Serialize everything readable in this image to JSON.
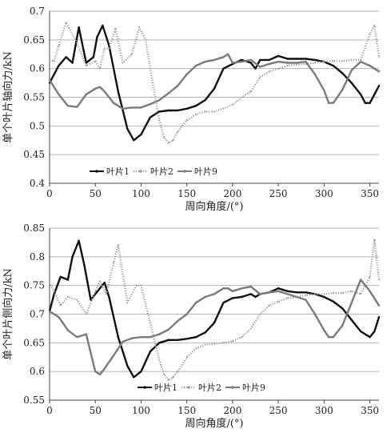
{
  "chart_data": [
    {
      "type": "line",
      "xlabel": "周向角度/(°)",
      "ylabel": "单个叶片轴向力/kN",
      "xlim": [
        0,
        360
      ],
      "ylim": [
        0.4,
        0.7
      ],
      "xticks": [
        0,
        50,
        100,
        150,
        200,
        250,
        300,
        350
      ],
      "yticks": [
        0.4,
        0.45,
        0.5,
        0.55,
        0.6,
        0.65,
        0.7
      ],
      "grid": "horizontal",
      "legend_position": "bottom-left",
      "series": [
        {
          "name": "叶片1",
          "color": "#111111",
          "style": "solid-thick",
          "x": [
            0,
            10,
            18,
            25,
            32,
            40,
            48,
            52,
            58,
            65,
            75,
            85,
            92,
            100,
            110,
            120,
            130,
            140,
            150,
            160,
            170,
            180,
            190,
            200,
            210,
            220,
            225,
            230,
            240,
            250,
            260,
            270,
            280,
            290,
            300,
            310,
            320,
            330,
            340,
            345,
            350,
            355,
            360
          ],
          "y": [
            0.575,
            0.605,
            0.62,
            0.61,
            0.672,
            0.61,
            0.62,
            0.655,
            0.675,
            0.64,
            0.56,
            0.495,
            0.475,
            0.485,
            0.515,
            0.525,
            0.527,
            0.527,
            0.53,
            0.535,
            0.545,
            0.565,
            0.6,
            0.608,
            0.615,
            0.61,
            0.6,
            0.615,
            0.615,
            0.622,
            0.617,
            0.617,
            0.617,
            0.615,
            0.612,
            0.605,
            0.592,
            0.575,
            0.555,
            0.54,
            0.54,
            0.555,
            0.57
          ]
        },
        {
          "name": "叶片2",
          "color": "#9a9a9a",
          "style": "dotted",
          "x": [
            0,
            5,
            10,
            18,
            30,
            40,
            50,
            55,
            60,
            65,
            72,
            80,
            90,
            98,
            105,
            110,
            120,
            125,
            130,
            135,
            140,
            150,
            160,
            170,
            180,
            190,
            200,
            210,
            220,
            230,
            240,
            250,
            260,
            270,
            280,
            290,
            300,
            310,
            320,
            330,
            340,
            350,
            355,
            360
          ],
          "y": [
            0.615,
            0.613,
            0.64,
            0.68,
            0.645,
            0.605,
            0.613,
            0.6,
            0.635,
            0.635,
            0.67,
            0.61,
            0.625,
            0.672,
            0.65,
            0.6,
            0.51,
            0.48,
            0.47,
            0.475,
            0.49,
            0.51,
            0.52,
            0.525,
            0.525,
            0.53,
            0.537,
            0.55,
            0.56,
            0.585,
            0.595,
            0.6,
            0.605,
            0.607,
            0.608,
            0.61,
            0.612,
            0.613,
            0.613,
            0.615,
            0.615,
            0.66,
            0.675,
            0.62
          ]
        },
        {
          "name": "叶片9",
          "color": "#7a7a7a",
          "style": "solid-thick",
          "x": [
            0,
            10,
            20,
            30,
            40,
            50,
            55,
            60,
            70,
            80,
            90,
            100,
            110,
            120,
            130,
            140,
            150,
            160,
            170,
            180,
            190,
            195,
            200,
            210,
            220,
            230,
            240,
            250,
            260,
            270,
            280,
            290,
            300,
            305,
            310,
            320,
            330,
            340,
            350,
            360
          ],
          "y": [
            0.58,
            0.555,
            0.535,
            0.533,
            0.555,
            0.565,
            0.568,
            0.56,
            0.54,
            0.53,
            0.532,
            0.532,
            0.538,
            0.545,
            0.557,
            0.57,
            0.59,
            0.605,
            0.612,
            0.615,
            0.62,
            0.625,
            0.61,
            0.612,
            0.615,
            0.603,
            0.608,
            0.612,
            0.61,
            0.61,
            0.612,
            0.59,
            0.562,
            0.54,
            0.54,
            0.563,
            0.597,
            0.612,
            0.605,
            0.595
          ]
        }
      ]
    },
    {
      "type": "line",
      "xlabel": "周向角度/(°)",
      "ylabel": "单个叶片侧向力/kN",
      "xlim": [
        0,
        360
      ],
      "ylim": [
        0.55,
        0.85
      ],
      "xticks": [
        0,
        50,
        100,
        150,
        200,
        250,
        300,
        350
      ],
      "yticks": [
        0.55,
        0.6,
        0.65,
        0.7,
        0.75,
        0.8,
        0.85
      ],
      "grid": "horizontal",
      "legend_position": "bottom-center",
      "series": [
        {
          "name": "叶片1",
          "color": "#111111",
          "style": "solid-thick",
          "x": [
            0,
            5,
            12,
            20,
            25,
            32,
            38,
            45,
            55,
            60,
            65,
            75,
            85,
            92,
            100,
            110,
            120,
            130,
            140,
            150,
            160,
            170,
            180,
            190,
            200,
            210,
            220,
            225,
            230,
            240,
            250,
            260,
            270,
            280,
            290,
            300,
            310,
            320,
            330,
            340,
            350,
            355,
            360
          ],
          "y": [
            0.705,
            0.735,
            0.765,
            0.76,
            0.8,
            0.828,
            0.785,
            0.725,
            0.745,
            0.755,
            0.73,
            0.66,
            0.61,
            0.59,
            0.6,
            0.635,
            0.65,
            0.655,
            0.655,
            0.657,
            0.66,
            0.668,
            0.685,
            0.72,
            0.728,
            0.73,
            0.735,
            0.73,
            0.735,
            0.738,
            0.745,
            0.74,
            0.738,
            0.738,
            0.735,
            0.73,
            0.722,
            0.71,
            0.69,
            0.67,
            0.66,
            0.67,
            0.695
          ]
        },
        {
          "name": "叶片2",
          "color": "#9a9a9a",
          "style": "dotted",
          "x": [
            0,
            5,
            12,
            20,
            30,
            40,
            50,
            55,
            62,
            70,
            75,
            85,
            95,
            100,
            110,
            120,
            125,
            130,
            135,
            140,
            150,
            160,
            170,
            180,
            190,
            200,
            210,
            220,
            230,
            240,
            250,
            260,
            270,
            280,
            290,
            300,
            310,
            320,
            330,
            340,
            350,
            355,
            360
          ],
          "y": [
            0.755,
            0.74,
            0.715,
            0.73,
            0.725,
            0.7,
            0.74,
            0.757,
            0.735,
            0.79,
            0.82,
            0.72,
            0.75,
            0.75,
            0.685,
            0.62,
            0.595,
            0.585,
            0.59,
            0.6,
            0.625,
            0.64,
            0.647,
            0.648,
            0.65,
            0.653,
            0.66,
            0.675,
            0.7,
            0.715,
            0.722,
            0.728,
            0.73,
            0.733,
            0.735,
            0.735,
            0.737,
            0.737,
            0.74,
            0.735,
            0.765,
            0.83,
            0.76
          ]
        },
        {
          "name": "叶片9",
          "color": "#7a7a7a",
          "style": "solid-thick",
          "x": [
            0,
            10,
            20,
            30,
            40,
            50,
            55,
            60,
            70,
            80,
            90,
            100,
            110,
            120,
            130,
            140,
            150,
            160,
            170,
            180,
            190,
            195,
            200,
            210,
            220,
            230,
            240,
            250,
            260,
            270,
            280,
            290,
            300,
            305,
            310,
            320,
            330,
            340,
            350,
            360
          ],
          "y": [
            0.705,
            0.695,
            0.672,
            0.66,
            0.665,
            0.6,
            0.595,
            0.605,
            0.628,
            0.652,
            0.658,
            0.66,
            0.66,
            0.665,
            0.673,
            0.688,
            0.7,
            0.72,
            0.73,
            0.735,
            0.745,
            0.745,
            0.74,
            0.745,
            0.748,
            0.735,
            0.738,
            0.74,
            0.735,
            0.73,
            0.725,
            0.7,
            0.672,
            0.66,
            0.66,
            0.68,
            0.72,
            0.76,
            0.74,
            0.715
          ]
        }
      ]
    }
  ]
}
